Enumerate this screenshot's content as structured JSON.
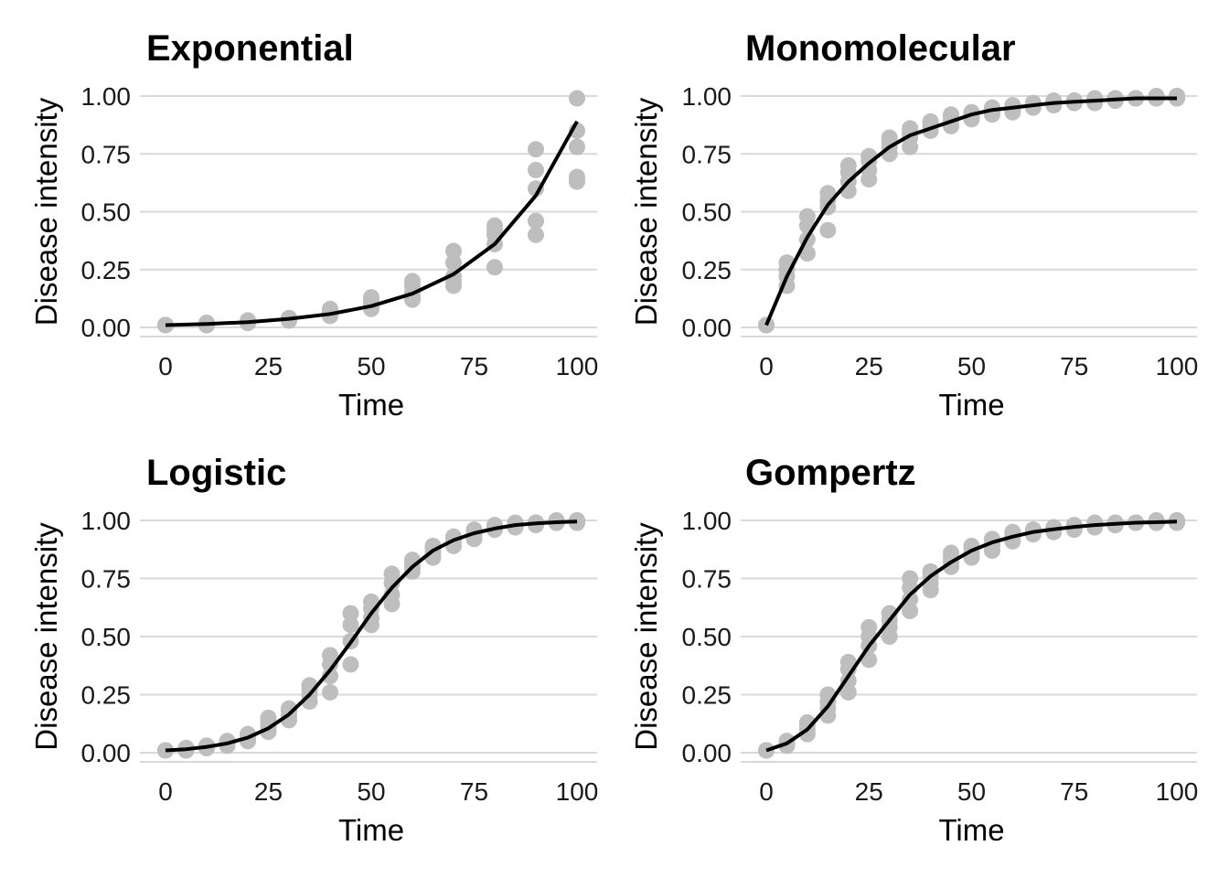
{
  "chart_data": [
    {
      "type": "scatter",
      "title": "Exponential",
      "xlabel": "Time",
      "ylabel": "Disease intensity",
      "xlim": [
        0,
        100
      ],
      "ylim": [
        0,
        1
      ],
      "xticks": [
        "0",
        "25",
        "50",
        "75",
        "100"
      ],
      "yticks": [
        "0.00",
        "0.25",
        "0.50",
        "0.75",
        "1.00"
      ],
      "grid": "horizontal",
      "series": [
        {
          "kind": "points",
          "x": [
            0,
            0,
            0,
            0,
            0,
            10,
            10,
            10,
            10,
            10,
            20,
            20,
            20,
            20,
            20,
            30,
            30,
            30,
            30,
            30,
            40,
            40,
            40,
            40,
            40,
            50,
            50,
            50,
            50,
            50,
            60,
            60,
            60,
            60,
            60,
            70,
            70,
            70,
            70,
            70,
            80,
            80,
            80,
            80,
            80,
            90,
            90,
            90,
            90,
            90,
            100,
            100,
            100,
            100,
            100
          ],
          "y": [
            0.01,
            0.01,
            0.01,
            0.01,
            0.01,
            0.01,
            0.01,
            0.02,
            0.01,
            0.01,
            0.02,
            0.02,
            0.03,
            0.02,
            0.02,
            0.03,
            0.04,
            0.04,
            0.03,
            0.04,
            0.05,
            0.07,
            0.08,
            0.06,
            0.05,
            0.08,
            0.1,
            0.13,
            0.12,
            0.09,
            0.12,
            0.15,
            0.2,
            0.18,
            0.13,
            0.18,
            0.22,
            0.28,
            0.33,
            0.2,
            0.26,
            0.36,
            0.4,
            0.44,
            0.42,
            0.4,
            0.46,
            0.6,
            0.68,
            0.77,
            0.63,
            0.65,
            0.78,
            0.85,
            0.99
          ]
        },
        {
          "kind": "line",
          "x": [
            0,
            10,
            20,
            30,
            40,
            50,
            60,
            70,
            80,
            90,
            100
          ],
          "y": [
            0.01,
            0.015,
            0.023,
            0.037,
            0.058,
            0.092,
            0.146,
            0.23,
            0.36,
            0.57,
            0.89
          ]
        }
      ]
    },
    {
      "type": "scatter",
      "title": "Monomolecular",
      "xlabel": "Time",
      "ylabel": "Disease intensity",
      "xlim": [
        0,
        100
      ],
      "ylim": [
        0,
        1
      ],
      "xticks": [
        "0",
        "25",
        "50",
        "75",
        "100"
      ],
      "yticks": [
        "0.00",
        "0.25",
        "0.50",
        "0.75",
        "1.00"
      ],
      "grid": "horizontal",
      "series": [
        {
          "kind": "points",
          "x": [
            0,
            0,
            0,
            0,
            5,
            5,
            5,
            5,
            10,
            10,
            10,
            10,
            15,
            15,
            15,
            15,
            20,
            20,
            20,
            20,
            25,
            25,
            25,
            25,
            30,
            30,
            30,
            30,
            35,
            35,
            35,
            35,
            40,
            40,
            40,
            40,
            45,
            45,
            45,
            45,
            50,
            50,
            50,
            50,
            55,
            55,
            55,
            55,
            60,
            60,
            60,
            60,
            65,
            65,
            65,
            65,
            70,
            70,
            70,
            70,
            75,
            75,
            75,
            75,
            80,
            80,
            80,
            80,
            85,
            85,
            85,
            85,
            90,
            90,
            90,
            90,
            95,
            95,
            95,
            95,
            100,
            100,
            100,
            100
          ],
          "y": [
            0.01,
            0.01,
            0.01,
            0.01,
            0.18,
            0.22,
            0.25,
            0.28,
            0.32,
            0.38,
            0.44,
            0.48,
            0.42,
            0.52,
            0.55,
            0.58,
            0.59,
            0.63,
            0.67,
            0.7,
            0.64,
            0.68,
            0.72,
            0.74,
            0.75,
            0.78,
            0.8,
            0.82,
            0.78,
            0.82,
            0.84,
            0.86,
            0.85,
            0.87,
            0.88,
            0.89,
            0.87,
            0.89,
            0.91,
            0.92,
            0.9,
            0.91,
            0.92,
            0.93,
            0.92,
            0.93,
            0.94,
            0.95,
            0.93,
            0.94,
            0.95,
            0.96,
            0.95,
            0.96,
            0.96,
            0.97,
            0.96,
            0.97,
            0.97,
            0.98,
            0.97,
            0.97,
            0.98,
            0.98,
            0.97,
            0.98,
            0.98,
            0.99,
            0.98,
            0.98,
            0.99,
            0.99,
            0.99,
            0.99,
            0.99,
            0.99,
            0.99,
            0.99,
            0.99,
            1.0,
            0.99,
            0.99,
            1.0,
            1.0
          ]
        },
        {
          "kind": "line",
          "x": [
            0,
            5,
            10,
            15,
            20,
            25,
            30,
            35,
            40,
            45,
            50,
            55,
            60,
            65,
            70,
            75,
            80,
            85,
            90,
            95,
            100
          ],
          "y": [
            0.01,
            0.22,
            0.39,
            0.53,
            0.63,
            0.71,
            0.78,
            0.83,
            0.86,
            0.89,
            0.92,
            0.94,
            0.95,
            0.96,
            0.97,
            0.975,
            0.98,
            0.985,
            0.99,
            0.99,
            0.99
          ]
        }
      ]
    },
    {
      "type": "scatter",
      "title": "Logistic",
      "xlabel": "Time",
      "ylabel": "Disease intensity",
      "xlim": [
        0,
        100
      ],
      "ylim": [
        0,
        1
      ],
      "xticks": [
        "0",
        "25",
        "50",
        "75",
        "100"
      ],
      "yticks": [
        "0.00",
        "0.25",
        "0.50",
        "0.75",
        "1.00"
      ],
      "grid": "horizontal",
      "series": [
        {
          "kind": "points",
          "x": [
            0,
            0,
            0,
            0,
            5,
            5,
            5,
            5,
            10,
            10,
            10,
            10,
            15,
            15,
            15,
            15,
            20,
            20,
            20,
            20,
            25,
            25,
            25,
            25,
            30,
            30,
            30,
            30,
            35,
            35,
            35,
            35,
            40,
            40,
            40,
            40,
            45,
            45,
            45,
            45,
            50,
            50,
            50,
            50,
            55,
            55,
            55,
            55,
            60,
            60,
            60,
            60,
            65,
            65,
            65,
            65,
            70,
            70,
            70,
            70,
            75,
            75,
            75,
            75,
            80,
            80,
            80,
            80,
            85,
            85,
            85,
            85,
            90,
            90,
            90,
            90,
            95,
            95,
            95,
            95,
            100,
            100,
            100,
            100
          ],
          "y": [
            0.01,
            0.01,
            0.01,
            0.01,
            0.01,
            0.01,
            0.02,
            0.02,
            0.02,
            0.02,
            0.03,
            0.03,
            0.03,
            0.04,
            0.05,
            0.05,
            0.05,
            0.06,
            0.07,
            0.08,
            0.09,
            0.11,
            0.13,
            0.15,
            0.14,
            0.16,
            0.18,
            0.19,
            0.22,
            0.25,
            0.27,
            0.29,
            0.26,
            0.33,
            0.38,
            0.42,
            0.38,
            0.48,
            0.55,
            0.6,
            0.55,
            0.58,
            0.62,
            0.65,
            0.64,
            0.68,
            0.73,
            0.77,
            0.78,
            0.8,
            0.82,
            0.83,
            0.84,
            0.86,
            0.88,
            0.89,
            0.89,
            0.91,
            0.92,
            0.93,
            0.92,
            0.94,
            0.95,
            0.96,
            0.96,
            0.97,
            0.97,
            0.98,
            0.97,
            0.98,
            0.98,
            0.99,
            0.98,
            0.99,
            0.99,
            0.99,
            0.99,
            0.99,
            0.99,
            1.0,
            0.99,
            0.99,
            1.0,
            1.0
          ]
        },
        {
          "kind": "line",
          "x": [
            0,
            5,
            10,
            15,
            20,
            25,
            30,
            35,
            40,
            45,
            50,
            55,
            60,
            65,
            70,
            75,
            80,
            85,
            90,
            95,
            100
          ],
          "y": [
            0.01,
            0.015,
            0.025,
            0.04,
            0.065,
            0.105,
            0.165,
            0.25,
            0.355,
            0.475,
            0.6,
            0.71,
            0.8,
            0.87,
            0.915,
            0.945,
            0.965,
            0.98,
            0.987,
            0.992,
            0.995
          ]
        }
      ]
    },
    {
      "type": "scatter",
      "title": "Gompertz",
      "xlabel": "Time",
      "ylabel": "Disease intensity",
      "xlim": [
        0,
        100
      ],
      "ylim": [
        0,
        1
      ],
      "xticks": [
        "0",
        "25",
        "50",
        "75",
        "100"
      ],
      "yticks": [
        "0.00",
        "0.25",
        "0.50",
        "0.75",
        "1.00"
      ],
      "grid": "horizontal",
      "series": [
        {
          "kind": "points",
          "x": [
            0,
            0,
            0,
            0,
            5,
            5,
            5,
            5,
            10,
            10,
            10,
            10,
            15,
            15,
            15,
            15,
            20,
            20,
            20,
            20,
            25,
            25,
            25,
            25,
            30,
            30,
            30,
            30,
            35,
            35,
            35,
            35,
            40,
            40,
            40,
            40,
            45,
            45,
            45,
            45,
            50,
            50,
            50,
            50,
            55,
            55,
            55,
            55,
            60,
            60,
            60,
            60,
            65,
            65,
            65,
            65,
            70,
            70,
            70,
            70,
            75,
            75,
            75,
            75,
            80,
            80,
            80,
            80,
            85,
            85,
            85,
            85,
            90,
            90,
            90,
            90,
            95,
            95,
            95,
            95,
            100,
            100,
            100,
            100
          ],
          "y": [
            0.01,
            0.01,
            0.01,
            0.01,
            0.03,
            0.04,
            0.05,
            0.05,
            0.08,
            0.1,
            0.12,
            0.13,
            0.16,
            0.19,
            0.22,
            0.25,
            0.26,
            0.31,
            0.36,
            0.39,
            0.4,
            0.46,
            0.5,
            0.54,
            0.5,
            0.54,
            0.57,
            0.6,
            0.61,
            0.66,
            0.71,
            0.75,
            0.7,
            0.73,
            0.76,
            0.78,
            0.8,
            0.82,
            0.84,
            0.86,
            0.84,
            0.86,
            0.88,
            0.89,
            0.87,
            0.89,
            0.9,
            0.92,
            0.91,
            0.93,
            0.94,
            0.95,
            0.94,
            0.95,
            0.96,
            0.96,
            0.95,
            0.96,
            0.97,
            0.97,
            0.96,
            0.97,
            0.97,
            0.98,
            0.97,
            0.98,
            0.98,
            0.99,
            0.98,
            0.98,
            0.99,
            0.99,
            0.99,
            0.99,
            0.99,
            0.99,
            0.99,
            0.99,
            0.99,
            1.0,
            0.99,
            0.99,
            1.0,
            1.0
          ]
        },
        {
          "kind": "line",
          "x": [
            0,
            5,
            10,
            15,
            20,
            25,
            30,
            35,
            40,
            45,
            50,
            55,
            60,
            65,
            70,
            75,
            80,
            85,
            90,
            95,
            100
          ],
          "y": [
            0.01,
            0.04,
            0.1,
            0.2,
            0.33,
            0.46,
            0.57,
            0.68,
            0.76,
            0.82,
            0.87,
            0.905,
            0.93,
            0.95,
            0.962,
            0.972,
            0.98,
            0.985,
            0.99,
            0.992,
            0.995
          ]
        }
      ]
    }
  ]
}
